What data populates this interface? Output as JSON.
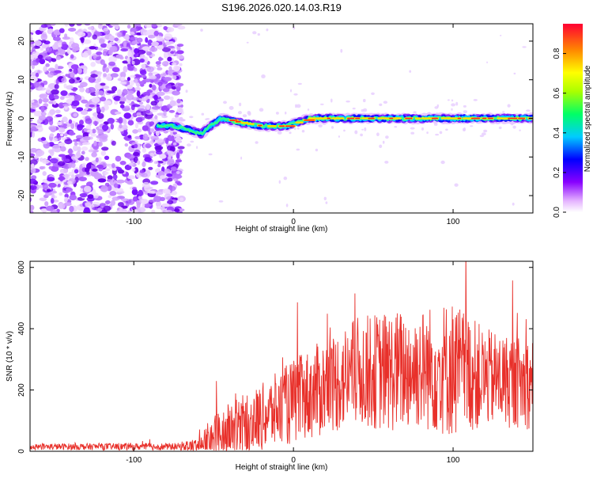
{
  "title": "S196.2026.020.14.03.R19",
  "chart_data": [
    {
      "type": "heatmap",
      "name": "spectrogram",
      "xlabel": "Height of straight line (km)",
      "ylabel": "Frequency (Hz)",
      "xlim": [
        -165,
        150
      ],
      "ylim": [
        -24.5,
        24.5
      ],
      "xticks": [
        -100,
        0,
        100
      ],
      "yticks": [
        -20,
        -10,
        0,
        10,
        20
      ],
      "colorbar": {
        "label": "Normalized spectral amplitude",
        "range": [
          0,
          0.95
        ],
        "ticks": [
          0.0,
          0.2,
          0.4,
          0.6,
          0.8
        ]
      },
      "noise_region_x": [
        -165,
        -75
      ],
      "signal_track": {
        "x": [
          -85,
          -75,
          -65,
          -58,
          -52,
          -45,
          -35,
          -20,
          -5,
          10,
          25,
          45,
          65,
          85,
          100,
          115,
          130,
          150
        ],
        "frequency": [
          -2,
          -2,
          -3,
          -4,
          -2,
          0,
          -1,
          -2,
          -2,
          0,
          0,
          0,
          0,
          0,
          0,
          0,
          0,
          0
        ]
      }
    },
    {
      "type": "line",
      "name": "snr",
      "xlabel": "Height of straight line (km)",
      "ylabel": "SNR (10 * v/v)",
      "xlim": [
        -165,
        150
      ],
      "ylim": [
        0,
        620
      ],
      "xticks": [
        -100,
        0,
        100
      ],
      "yticks": [
        0,
        200,
        400,
        600
      ],
      "color": "#e8302a",
      "envelope": {
        "x": [
          -165,
          -70,
          -60,
          -50,
          -40,
          -20,
          0,
          20,
          40,
          60,
          80,
          100,
          120,
          150
        ],
        "baseline": [
          15,
          15,
          20,
          40,
          70,
          110,
          160,
          210,
          260,
          260,
          270,
          270,
          240,
          220
        ],
        "amplitude": [
          10,
          12,
          25,
          80,
          90,
          110,
          140,
          160,
          180,
          200,
          200,
          230,
          160,
          150
        ]
      }
    }
  ]
}
